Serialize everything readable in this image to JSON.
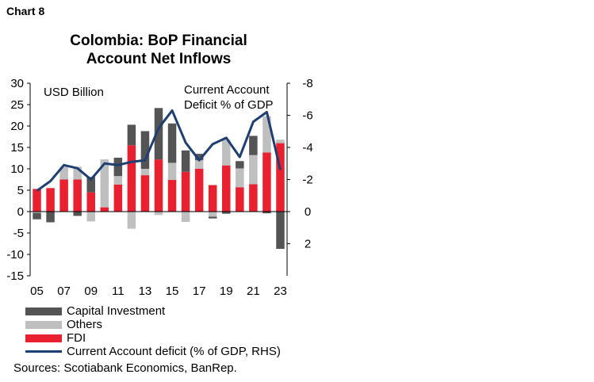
{
  "chart_number": "Chart 8",
  "title_line1": "Colombia: BoP Financial",
  "title_line2": "Account Net Inflows",
  "left_unit": "USD Billion",
  "right_unit_line1": "Current Account",
  "right_unit_line2": "Deficit % of GDP",
  "legend": [
    {
      "label": "Capital Investment",
      "color": "#545454",
      "kind": "bar"
    },
    {
      "label": "Others",
      "color": "#bfbfbf",
      "kind": "bar"
    },
    {
      "label": "FDI",
      "color": "#e8202f",
      "kind": "bar"
    },
    {
      "label": "Current Account deficit (% of GDP, RHS)",
      "color": "#1f3f73",
      "kind": "line"
    }
  ],
  "source": "Sources: Scotiabank Economics, BanRep.",
  "chart_data": {
    "type": "bar",
    "stacked": true,
    "categories": [
      "05",
      "06",
      "07",
      "08",
      "09",
      "10",
      "11",
      "12",
      "13",
      "14",
      "15",
      "16",
      "17",
      "18",
      "19",
      "20",
      "21",
      "22",
      "23"
    ],
    "x_tick_labels": [
      "05",
      "07",
      "09",
      "11",
      "13",
      "15",
      "17",
      "19",
      "21",
      "23"
    ],
    "series": [
      {
        "name": "FDI",
        "color": "#e8202f",
        "values": [
          5.3,
          5.5,
          7.5,
          7.5,
          4.5,
          1.0,
          6.3,
          15.5,
          8.5,
          12.2,
          7.4,
          9.3,
          10.0,
          6.2,
          10.8,
          5.7,
          6.4,
          13.8,
          16.0
        ]
      },
      {
        "name": "Others",
        "color": "#bfbfbf",
        "values": [
          -0.3,
          0.0,
          3.0,
          3.0,
          -2.3,
          11.2,
          2.0,
          -4.0,
          1.5,
          -0.8,
          4.0,
          -2.4,
          2.0,
          -1.2,
          6.0,
          4.4,
          6.8,
          8.5,
          0.8
        ]
      },
      {
        "name": "Capital Investment",
        "color": "#545454",
        "values": [
          -1.5,
          -2.5,
          0.0,
          -1.0,
          3.6,
          0.0,
          4.3,
          4.8,
          8.8,
          12.0,
          9.2,
          5.0,
          1.5,
          -0.4,
          -0.5,
          1.7,
          4.5,
          -0.4,
          -8.7
        ]
      },
      {
        "name": "Current Account deficit (% of GDP, RHS)",
        "color": "#1f3f73",
        "axis": "right",
        "type": "line",
        "values": [
          -1.3,
          -1.9,
          -2.9,
          -2.7,
          -2.0,
          -3.0,
          -2.9,
          -3.1,
          -3.2,
          -5.2,
          -6.3,
          -4.3,
          -3.2,
          -4.2,
          -4.6,
          -3.4,
          -5.6,
          -6.2,
          -2.6
        ]
      }
    ],
    "y_left": {
      "ylim": [
        -15,
        30
      ],
      "ticks": [
        -15,
        -10,
        -5,
        0,
        5,
        10,
        15,
        20,
        25,
        30
      ],
      "tick_labels": [
        "-15",
        "-10",
        "-5",
        "0",
        "5",
        "10",
        "15",
        "20",
        "25",
        "30"
      ]
    },
    "y_right": {
      "ylim": [
        -8,
        4
      ],
      "reversed": true,
      "ticks": [
        -8,
        -6,
        -4,
        -2,
        0,
        2
      ],
      "tick_labels": [
        "-8",
        "-6",
        "-4",
        "-2",
        "0",
        "2"
      ]
    },
    "grid": false
  }
}
